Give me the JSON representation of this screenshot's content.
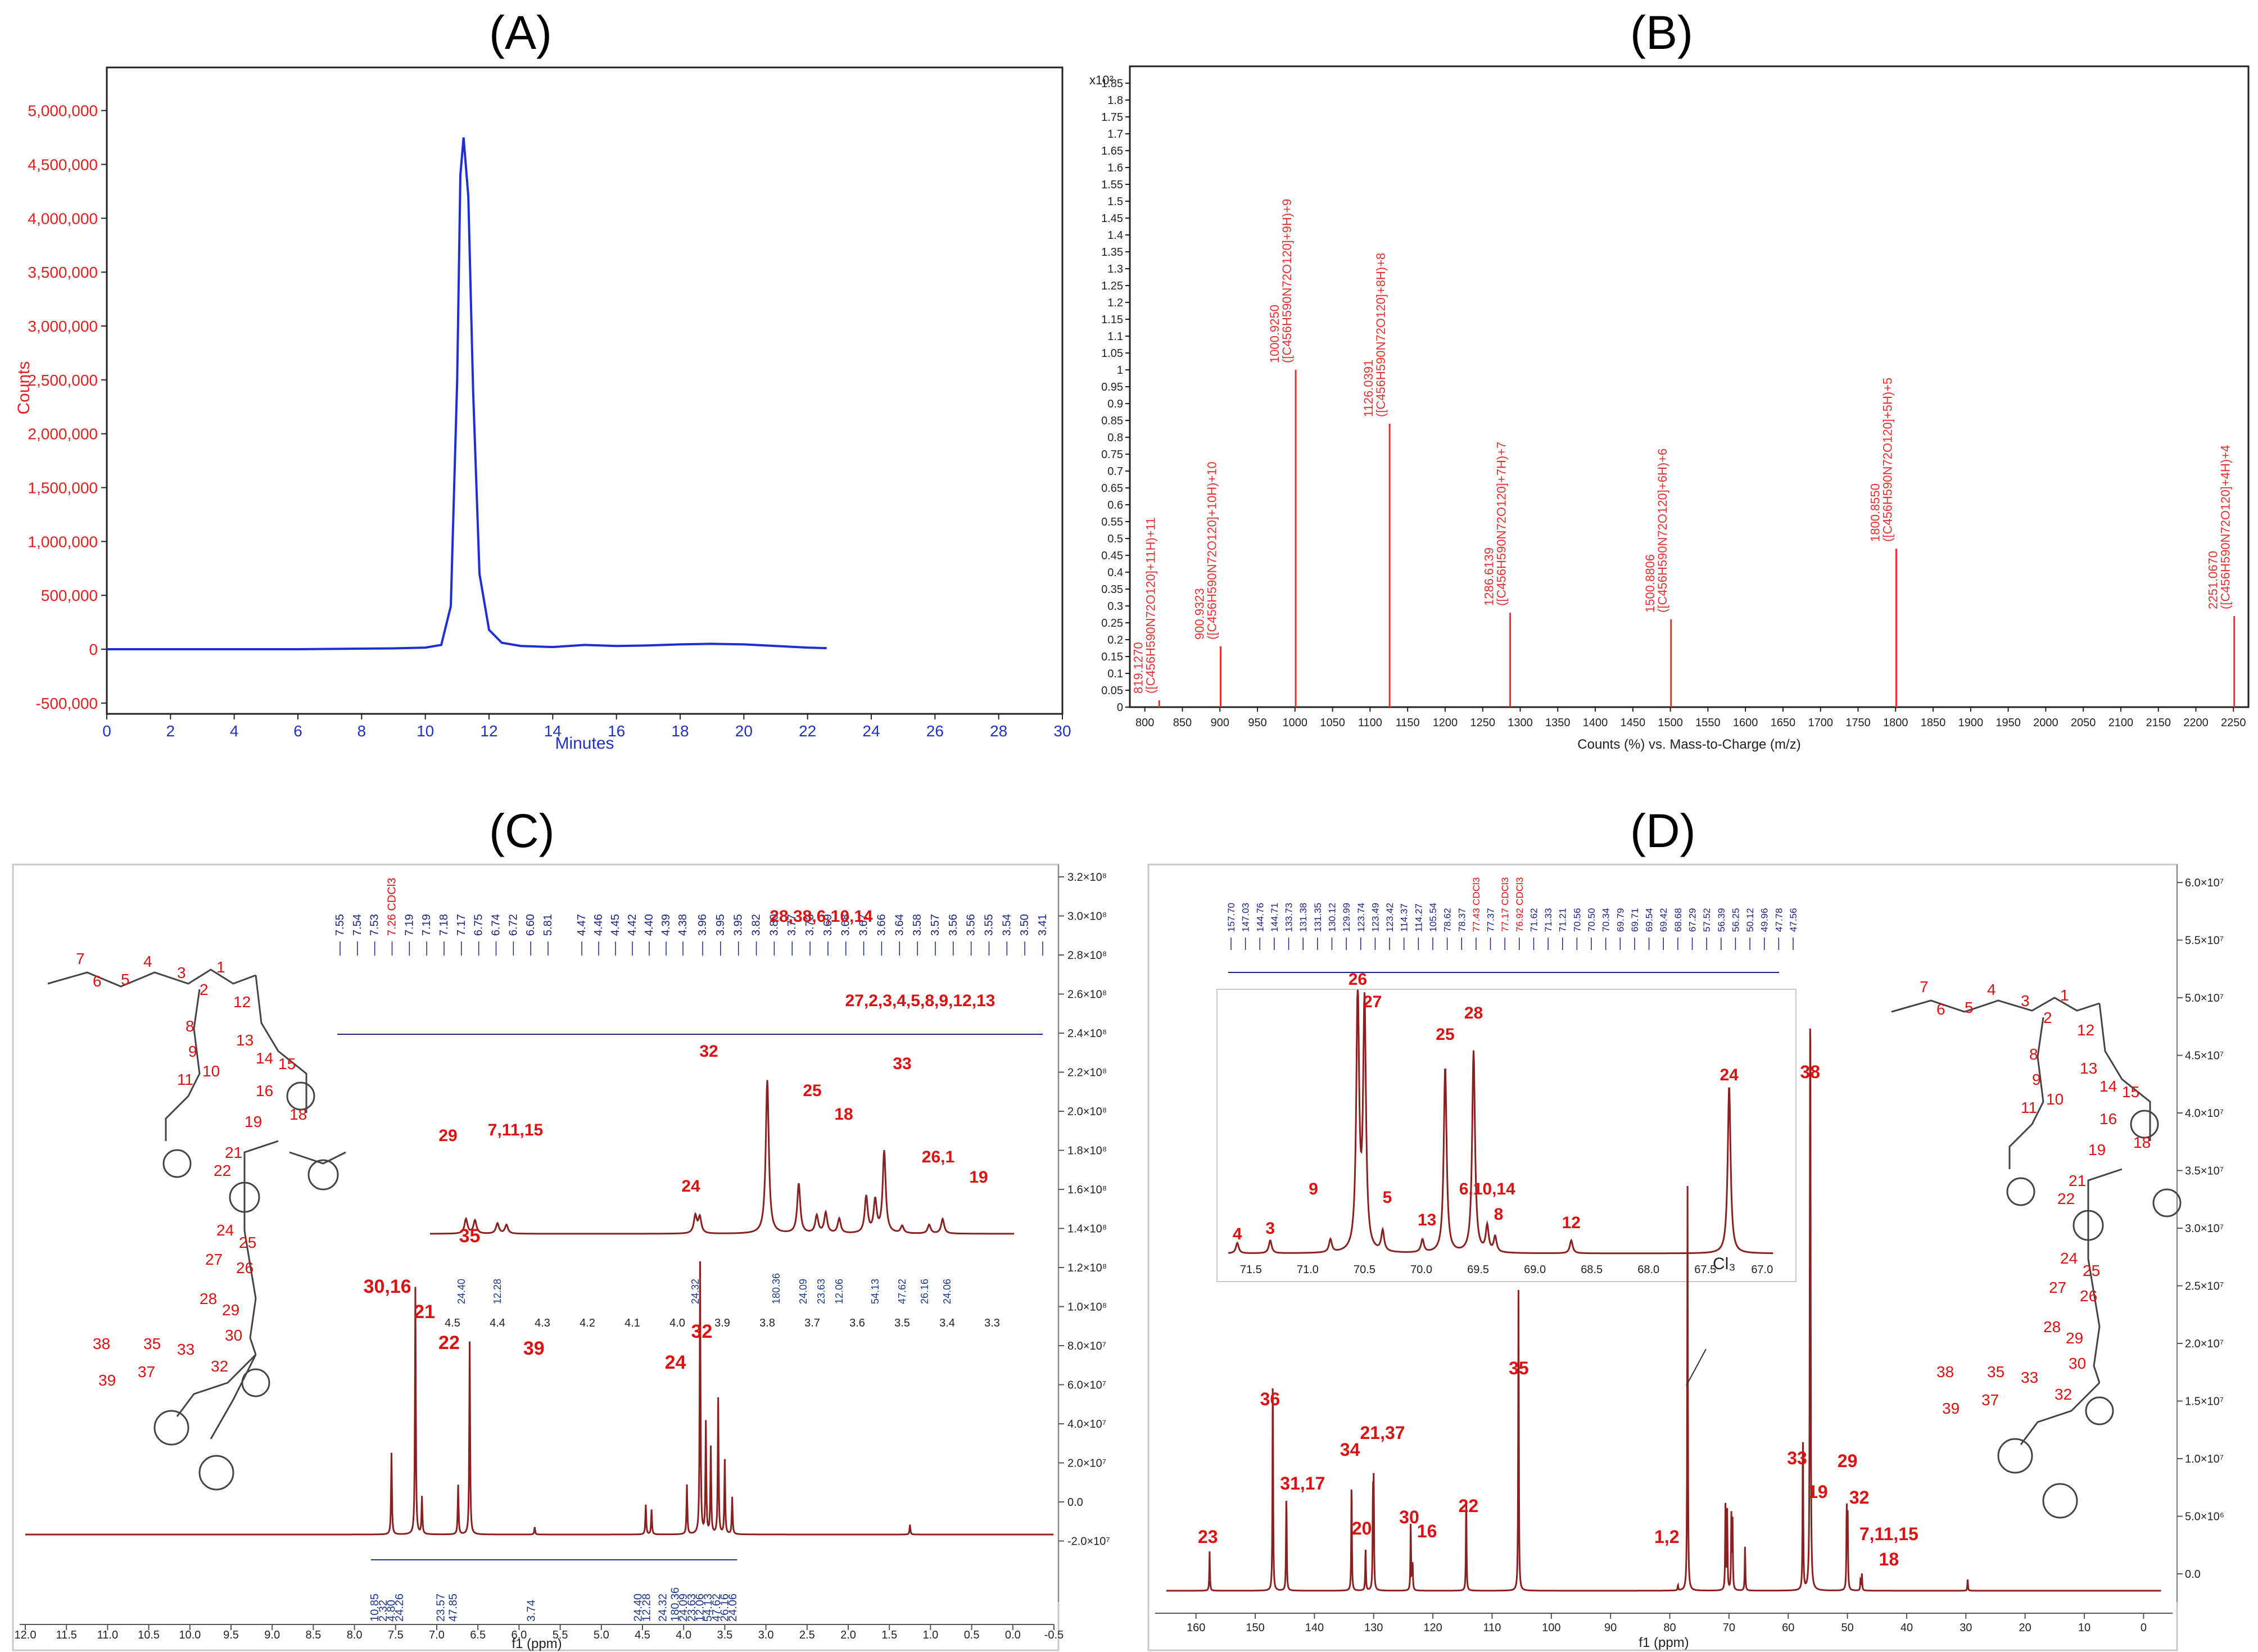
{
  "panels": {
    "A": "(A)",
    "B": "(B)",
    "C": "(C)",
    "D": "(D)"
  },
  "colors": {
    "hplc_line": "#1f2fd6",
    "hplc_axis_text": "#e02020",
    "hplc_minutes": "#2030c8",
    "ms_peaks": "#e83030",
    "nmr_trace": "#8a2020",
    "nmr_label": "#dd1111",
    "nmr_peak_list": "#1a237e",
    "integral": "#1f3a8a"
  },
  "chart_data": [
    {
      "id": "A",
      "type": "line",
      "xlabel": "Minutes",
      "ylabel": "Counts",
      "xlim": [
        0,
        30
      ],
      "ylim": [
        -600000,
        5400000
      ],
      "xticks": [
        "0",
        "2",
        "4",
        "6",
        "8",
        "10",
        "12",
        "14",
        "16",
        "18",
        "20",
        "22",
        "24",
        "26",
        "28",
        "30"
      ],
      "yticks": [
        "5,000,000",
        "4,500,000",
        "4,000,000",
        "3,500,000",
        "3,000,000",
        "2,500,000",
        "2,000,000",
        "1,500,000",
        "1,000,000",
        "500,000",
        "0",
        "-500,000"
      ],
      "ytick_values": [
        5000000,
        4500000,
        4000000,
        3500000,
        3000000,
        2500000,
        2000000,
        1500000,
        1000000,
        500000,
        0,
        -500000
      ],
      "series": [
        {
          "name": "chromatogram",
          "x": [
            0,
            6,
            9,
            10,
            10.5,
            10.8,
            11.0,
            11.1,
            11.2,
            11.35,
            11.5,
            11.7,
            12.0,
            12.4,
            13,
            14,
            15,
            16,
            17,
            18,
            19,
            20,
            21,
            22,
            22.6
          ],
          "y": [
            0,
            0,
            8000,
            15000,
            40000,
            400000,
            2500000,
            4400000,
            4750000,
            4200000,
            2400000,
            700000,
            180000,
            60000,
            30000,
            20000,
            40000,
            30000,
            35000,
            45000,
            50000,
            45000,
            30000,
            15000,
            10000
          ]
        }
      ]
    },
    {
      "id": "B",
      "type": "bar",
      "xlabel": "Counts (%) vs. Mass-to-Charge (m/z)",
      "ylabel": "x10²",
      "xlim": [
        780,
        2270
      ],
      "ylim": [
        0,
        1.9
      ],
      "xticks": [
        "800",
        "850",
        "900",
        "950",
        "1000",
        "1050",
        "1100",
        "1150",
        "1200",
        "1250",
        "1300",
        "1350",
        "1400",
        "1450",
        "1500",
        "1550",
        "1600",
        "1650",
        "1700",
        "1750",
        "1800",
        "1850",
        "1900",
        "1950",
        "2000",
        "2050",
        "2100",
        "2150",
        "2200",
        "2250"
      ],
      "yticks": [
        "1.85",
        "1.8",
        "1.75",
        "1.7",
        "1.65",
        "1.6",
        "1.55",
        "1.5",
        "1.45",
        "1.4",
        "1.35",
        "1.3",
        "1.25",
        "1.2",
        "1.15",
        "1.1",
        "1.05",
        "1",
        "0.95",
        "0.9",
        "0.85",
        "0.8",
        "0.75",
        "0.7",
        "0.65",
        "0.6",
        "0.55",
        "0.5",
        "0.45",
        "0.4",
        "0.35",
        "0.3",
        "0.25",
        "0.2",
        "0.15",
        "0.1",
        "0.05",
        "0"
      ],
      "peaks": [
        {
          "mz": 819.127,
          "value": 0.02,
          "label1": "819.1270",
          "label2": "([C456H590N72O120]+11H)+11"
        },
        {
          "mz": 900.9323,
          "value": 0.18,
          "label1": "900.9323",
          "label2": "([C456H590N72O120]+10H)+10"
        },
        {
          "mz": 1000.925,
          "value": 1.0,
          "label1": "1000.9250",
          "label2": "([C456H590N72O120]+9H)+9"
        },
        {
          "mz": 1126.0391,
          "value": 0.84,
          "label1": "1126.0391",
          "label2": "([C456H590N72O120]+8H)+8"
        },
        {
          "mz": 1286.6139,
          "value": 0.28,
          "label1": "1286.6139",
          "label2": "([C456H590N72O120]+7H)+7"
        },
        {
          "mz": 1500.8806,
          "value": 0.26,
          "label1": "1500.8806",
          "label2": "([C456H590N72O120]+6H)+6"
        },
        {
          "mz": 1800.855,
          "value": 0.47,
          "label1": "1800.8550",
          "label2": "([C456H590N72O120]+5H)+5"
        },
        {
          "mz": 2251.067,
          "value": 0.27,
          "label1": "2251.0670",
          "label2": "([C456H590N72O120]+4H)+4"
        }
      ]
    },
    {
      "id": "C",
      "type": "line",
      "xlabel": "f1 (ppm)",
      "xlim": [
        12.0,
        -0.5
      ],
      "xticks": [
        "12.0",
        "11.5",
        "11.0",
        "10.5",
        "10.0",
        "9.5",
        "9.0",
        "8.5",
        "8.0",
        "7.5",
        "7.0",
        "6.5",
        "6.0",
        "5.5",
        "5.0",
        "4.5",
        "4.0",
        "3.5",
        "3.0",
        "2.5",
        "2.0",
        "1.5",
        "1.0",
        "0.5",
        "0.0",
        "-0.5"
      ],
      "right_ticks": [
        "3.2×10⁸",
        "3.0×10⁸",
        "2.8×10⁸",
        "2.6×10⁸",
        "2.4×10⁸",
        "2.2×10⁸",
        "2.0×10⁸",
        "1.8×10⁸",
        "1.6×10⁸",
        "1.4×10⁸",
        "1.2×10⁸",
        "1.0×10⁸",
        "8.0×10⁷",
        "6.0×10⁷",
        "4.0×10⁷",
        "2.0×10⁷",
        "0.0",
        "-2.0×10⁷"
      ],
      "peaks": [
        {
          "ppm": 7.55,
          "h": 0.33
        },
        {
          "ppm": 7.26,
          "h": 1.0
        },
        {
          "ppm": 7.18,
          "h": 0.15
        },
        {
          "ppm": 6.74,
          "h": 0.2
        },
        {
          "ppm": 6.6,
          "h": 0.78
        },
        {
          "ppm": 5.81,
          "h": 0.03
        },
        {
          "ppm": 4.46,
          "h": 0.12
        },
        {
          "ppm": 4.39,
          "h": 0.1
        },
        {
          "ppm": 3.96,
          "h": 0.2
        },
        {
          "ppm": 3.8,
          "h": 1.1
        },
        {
          "ppm": 3.73,
          "h": 0.45
        },
        {
          "ppm": 3.67,
          "h": 0.35
        },
        {
          "ppm": 3.58,
          "h": 0.55
        },
        {
          "ppm": 3.5,
          "h": 0.3
        },
        {
          "ppm": 3.41,
          "h": 0.15
        },
        {
          "ppm": 1.25,
          "h": 0.04
        }
      ],
      "labels": [
        "30,16",
        "21",
        "22",
        "35",
        "39",
        "24",
        "32"
      ],
      "integrals_main": [
        "10.85",
        "2.32",
        "4.80",
        "24.26",
        "23.57",
        "47.85",
        "3.74",
        "24.40",
        "12.28",
        "24.32",
        "180.36",
        "24.09",
        "23.63",
        "12.06",
        "54.13",
        "47.62",
        "26.16",
        "24.06"
      ],
      "inset": {
        "xticks": [
          "4.5",
          "4.4",
          "4.3",
          "4.2",
          "4.1",
          "4.0",
          "3.9",
          "3.8",
          "3.7",
          "3.6",
          "3.5",
          "3.4",
          "3.3"
        ],
        "labels": [
          "29",
          "7,11,15",
          "24",
          "32",
          "28,38,6,10,14",
          "25",
          "18",
          "27,2,3,4,5,8,9,12,13",
          "33",
          "26,1",
          "19"
        ],
        "integrals": [
          "24.40",
          "12.28",
          "24.32",
          "180.36",
          "24.09",
          "23.63",
          "12.06",
          "54.13",
          "47.62",
          "26.16",
          "24.06"
        ]
      },
      "peak_list_a": [
        "7.55",
        "7.54",
        "7.53",
        "7.26 CDCl3",
        "7.19",
        "7.19",
        "7.18",
        "7.17",
        "6.75",
        "6.74",
        "6.72",
        "6.60",
        "5.81"
      ],
      "peak_list_b": [
        "4.47",
        "4.46",
        "4.45",
        "4.42",
        "4.40",
        "4.39",
        "4.38"
      ],
      "peak_list_c": [
        "3.96",
        "3.95",
        "3.95",
        "3.82",
        "3.80",
        "3.77",
        "3.73",
        "3.69",
        "3.68",
        "3.67",
        "3.66",
        "3.64",
        "3.58",
        "3.57",
        "3.56",
        "3.56",
        "3.55",
        "3.54",
        "3.50",
        "3.41"
      ]
    },
    {
      "id": "D",
      "type": "line",
      "xlabel": "f1 (ppm)",
      "xlim": [
        165,
        -3
      ],
      "xticks": [
        "160",
        "150",
        "140",
        "130",
        "120",
        "110",
        "100",
        "90",
        "80",
        "70",
        "60",
        "50",
        "40",
        "30",
        "20",
        "10",
        "0"
      ],
      "right_ticks": [
        "6.0×10⁷",
        "5.5×10⁷",
        "5.0×10⁷",
        "4.5×10⁷",
        "4.0×10⁷",
        "3.5×10⁷",
        "3.0×10⁷",
        "2.5×10⁷",
        "2.0×10⁷",
        "1.5×10⁷",
        "1.0×10⁷",
        "5.0×10⁶",
        "0.0"
      ],
      "peaks": [
        {
          "ppm": 157.7,
          "h": 0.07
        },
        {
          "ppm": 147.03,
          "h": 0.4
        },
        {
          "ppm": 144.76,
          "h": 0.1
        },
        {
          "ppm": 144.71,
          "h": 0.09
        },
        {
          "ppm": 133.73,
          "h": 0.2
        },
        {
          "ppm": 131.38,
          "h": 0.04
        },
        {
          "ppm": 131.35,
          "h": 0.04
        },
        {
          "ppm": 130.12,
          "h": 0.17
        },
        {
          "ppm": 129.99,
          "h": 0.18
        },
        {
          "ppm": 123.74,
          "h": 0.12
        },
        {
          "ppm": 123.49,
          "h": 0.02
        },
        {
          "ppm": 123.42,
          "h": 0.04
        },
        {
          "ppm": 114.37,
          "h": 0.17
        },
        {
          "ppm": 105.54,
          "h": 0.55
        },
        {
          "ppm": 78.62,
          "h": 0.01
        },
        {
          "ppm": 77.0,
          "h": 0.72
        },
        {
          "ppm": 70.6,
          "h": 0.15
        },
        {
          "ppm": 70.3,
          "h": 0.14
        },
        {
          "ppm": 69.6,
          "h": 0.13
        },
        {
          "ppm": 69.4,
          "h": 0.12
        },
        {
          "ppm": 67.29,
          "h": 0.08
        },
        {
          "ppm": 57.52,
          "h": 0.29
        },
        {
          "ppm": 56.3,
          "h": 0.98
        },
        {
          "ppm": 56.25,
          "h": 0.4
        },
        {
          "ppm": 50.12,
          "h": 0.15
        },
        {
          "ppm": 49.96,
          "h": 0.13
        },
        {
          "ppm": 47.78,
          "h": 0.02
        },
        {
          "ppm": 47.56,
          "h": 0.03
        },
        {
          "ppm": 29.7,
          "h": 0.02
        }
      ],
      "labels": [
        "23",
        "36",
        "31,17",
        "34",
        "20",
        "21,37",
        "30",
        "16",
        "22",
        "35",
        "1,2",
        "33",
        "19",
        "38",
        "29",
        "32",
        "7,11,15",
        "18"
      ],
      "inset": {
        "xticks": [
          "71.5",
          "71.0",
          "70.5",
          "70.0",
          "69.5",
          "69.0",
          "68.5",
          "68.0",
          "67.5",
          "67.0"
        ],
        "labels": [
          "4",
          "3",
          "9",
          "26",
          "27",
          "5",
          "25",
          "13",
          "28",
          "6,10,14",
          "8",
          "12",
          "24"
        ]
      },
      "cl3": "Cl₃",
      "peak_list": [
        "157.70",
        "147.03",
        "144.76",
        "144.71",
        "133.73",
        "131.38",
        "131.35",
        "130.12",
        "129.99",
        "123.74",
        "123.49",
        "123.42",
        "114.37",
        "114.27",
        "105.54",
        "78.62",
        "78.37",
        "77.43 CDCl3",
        "77.37",
        "77.17 CDCl3",
        "76.92 CDCl3",
        "71.62",
        "71.33",
        "71.21",
        "70.56",
        "70.50",
        "70.34",
        "69.79",
        "69.71",
        "69.54",
        "69.42",
        "68.68",
        "67.29",
        "57.52",
        "56.39",
        "56.25",
        "50.12",
        "49.96",
        "47.78",
        "47.56"
      ]
    }
  ]
}
